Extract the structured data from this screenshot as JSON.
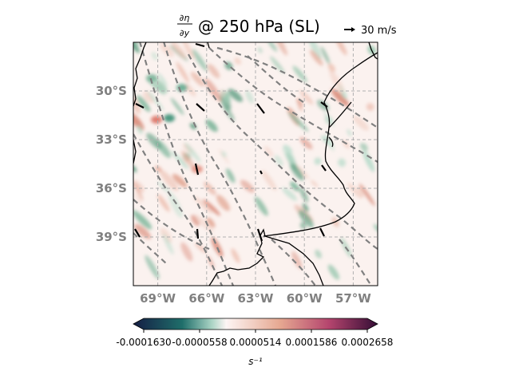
{
  "title": {
    "numerator": "∂η",
    "denominator": "∂y",
    "text": "@ 250 hPa (SL)"
  },
  "quiver_key": {
    "label": "30 m/s"
  },
  "map": {
    "extent_lon": [
      -70.5,
      -55.5
    ],
    "extent_lat": [
      -42,
      -27
    ],
    "lat_ticks": [
      {
        "value": -30,
        "label": "30°S"
      },
      {
        "value": -33,
        "label": "33°S"
      },
      {
        "value": -36,
        "label": "36°S"
      },
      {
        "value": -39,
        "label": "39°S"
      }
    ],
    "lon_ticks": [
      {
        "value": -69,
        "label": "69°W"
      },
      {
        "value": -66,
        "label": "66°W"
      },
      {
        "value": -63,
        "label": "63°W"
      },
      {
        "value": -60,
        "label": "60°W"
      },
      {
        "value": -57,
        "label": "57°W"
      }
    ],
    "gridlines": true,
    "contour_color": "#808080",
    "coast_color": "#000000"
  },
  "colorbar": {
    "min": -0.000163,
    "max": 0.0002658,
    "ticks": [
      "-0.0001630",
      "-0.0000558",
      "0.0000514",
      "0.0001586",
      "0.0002658"
    ],
    "tick_values": [
      -0.000163,
      -5.58e-05,
      5.14e-05,
      0.0001586,
      0.0002658
    ],
    "unit_label": "s⁻¹",
    "colormap": "curl",
    "colors": [
      "#151d44",
      "#1f6e6a",
      "#a9d3c4",
      "#fdf5f4",
      "#e6a891",
      "#b5456e",
      "#340d35"
    ]
  }
}
